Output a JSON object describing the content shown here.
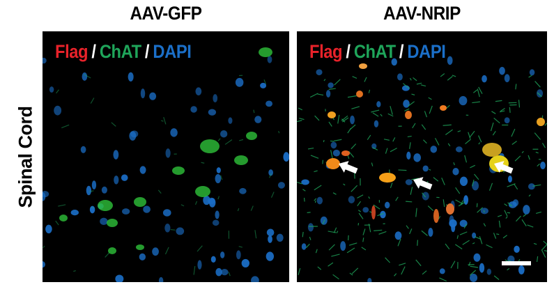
{
  "figure": {
    "row_label": "Spinal Cord",
    "panels": [
      {
        "title": "AAV-GFP",
        "legend": {
          "flag": "Flag",
          "chat": "ChAT",
          "dapi": "DAPI",
          "separator": "/"
        }
      },
      {
        "title": "AAV-NRIP",
        "legend": {
          "flag": "Flag",
          "chat": "ChAT",
          "dapi": "DAPI",
          "separator": "/"
        },
        "has_scale_bar": true,
        "arrow_count": 3
      }
    ],
    "colors": {
      "flag": "#e8222a",
      "chat": "#1fa55a",
      "dapi": "#1b6fc8",
      "merge": "#f5e11a"
    }
  }
}
